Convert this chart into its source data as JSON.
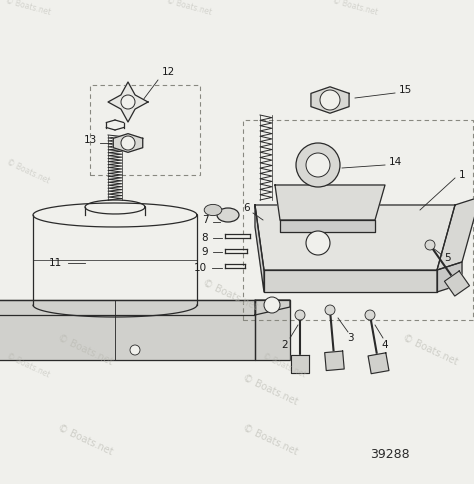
{
  "bg_color": "#f0f0ec",
  "line_color": "#2a2a2a",
  "fill_light": "#e8e8e4",
  "fill_mid": "#d8d8d4",
  "fill_dark": "#c8c8c4",
  "footer": "39288",
  "wm_color": "#b8b8b0",
  "figsize": [
    4.74,
    4.84
  ],
  "dpi": 100,
  "xlim": [
    0,
    474
  ],
  "ylim": [
    0,
    484
  ]
}
